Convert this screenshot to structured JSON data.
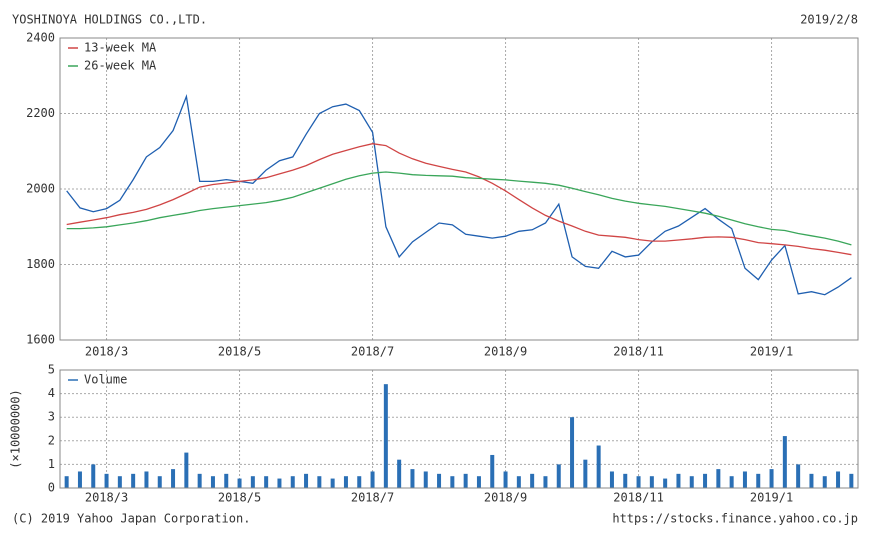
{
  "header": {
    "title": "YOSHINOYA HOLDINGS CO.,LTD.",
    "date": "2019/2/8"
  },
  "chart_data": [
    {
      "type": "line",
      "categories": [
        null,
        null,
        null,
        "2018/3",
        null,
        null,
        null,
        null,
        null,
        null,
        null,
        null,
        null,
        "2018/5",
        null,
        null,
        null,
        null,
        null,
        null,
        null,
        null,
        null,
        "2018/7",
        null,
        null,
        null,
        null,
        null,
        null,
        null,
        null,
        null,
        "2018/9",
        null,
        null,
        null,
        null,
        null,
        null,
        null,
        null,
        null,
        "2018/11",
        null,
        null,
        null,
        null,
        null,
        null,
        null,
        null,
        null,
        "2019/1",
        null,
        null,
        null,
        null,
        null,
        null
      ],
      "series": [
        {
          "color": "#1f5fb0",
          "values": [
            1995,
            1950,
            1940,
            1948,
            1970,
            2025,
            2085,
            2110,
            2155,
            2245,
            2020,
            2020,
            2025,
            2020,
            2015,
            2050,
            2075,
            2085,
            2145,
            2200,
            2218,
            2225,
            2208,
            2150,
            1900,
            1820,
            1860,
            1885,
            1910,
            1905,
            1880,
            1875,
            1870,
            1875,
            1888,
            1892,
            1910,
            1960,
            1820,
            1795,
            1790,
            1835,
            1820,
            1825,
            1860,
            1888,
            1902,
            1925,
            1948,
            1920,
            1895,
            1790,
            1760,
            1812,
            1850,
            1722,
            1728,
            1720,
            1740,
            1765
          ]
        },
        {
          "name": "13-week MA",
          "color": "#d04545",
          "values": [
            1906,
            1912,
            1918,
            1924,
            1932,
            1938,
            1946,
            1958,
            1972,
            1988,
            2005,
            2012,
            2016,
            2020,
            2024,
            2030,
            2040,
            2050,
            2062,
            2078,
            2092,
            2102,
            2112,
            2120,
            2115,
            2095,
            2080,
            2068,
            2060,
            2052,
            2045,
            2032,
            2015,
            1995,
            1972,
            1950,
            1930,
            1915,
            1902,
            1888,
            1878,
            1875,
            1872,
            1866,
            1862,
            1862,
            1865,
            1868,
            1872,
            1873,
            1872,
            1866,
            1858,
            1855,
            1852,
            1848,
            1842,
            1838,
            1832,
            1826
          ]
        },
        {
          "name": "26-week MA",
          "color": "#3aa65a",
          "values": [
            1895,
            1895,
            1897,
            1900,
            1905,
            1910,
            1916,
            1924,
            1930,
            1936,
            1943,
            1948,
            1952,
            1956,
            1960,
            1964,
            1970,
            1978,
            1990,
            2002,
            2014,
            2026,
            2035,
            2042,
            2045,
            2042,
            2038,
            2036,
            2035,
            2034,
            2030,
            2028,
            2026,
            2024,
            2021,
            2018,
            2015,
            2010,
            2002,
            1993,
            1985,
            1975,
            1968,
            1962,
            1958,
            1954,
            1948,
            1942,
            1936,
            1928,
            1918,
            1908,
            1900,
            1893,
            1890,
            1882,
            1876,
            1870,
            1862,
            1852
          ]
        }
      ],
      "ylim": [
        1600,
        2400
      ],
      "yticks": [
        1600,
        1800,
        2000,
        2200,
        2400
      ],
      "grid": true
    },
    {
      "type": "bar",
      "categories": [
        null,
        null,
        null,
        "2018/3",
        null,
        null,
        null,
        null,
        null,
        null,
        null,
        null,
        null,
        "2018/5",
        null,
        null,
        null,
        null,
        null,
        null,
        null,
        null,
        null,
        "2018/7",
        null,
        null,
        null,
        null,
        null,
        null,
        null,
        null,
        null,
        "2018/9",
        null,
        null,
        null,
        null,
        null,
        null,
        null,
        null,
        null,
        "2018/11",
        null,
        null,
        null,
        null,
        null,
        null,
        null,
        null,
        null,
        "2019/1",
        null,
        null,
        null,
        null,
        null,
        null
      ],
      "ylabel": "(×10000000)",
      "series": [
        {
          "name": "Volume",
          "color": "#2a6fb5",
          "values": [
            0.5,
            0.7,
            1.0,
            0.6,
            0.5,
            0.6,
            0.7,
            0.5,
            0.8,
            1.5,
            0.6,
            0.5,
            0.6,
            0.4,
            0.5,
            0.5,
            0.4,
            0.5,
            0.6,
            0.5,
            0.4,
            0.5,
            0.5,
            0.7,
            4.4,
            1.2,
            0.8,
            0.7,
            0.6,
            0.5,
            0.6,
            0.5,
            1.4,
            0.7,
            0.5,
            0.6,
            0.5,
            1.0,
            3.0,
            1.2,
            1.8,
            0.7,
            0.6,
            0.5,
            0.5,
            0.4,
            0.6,
            0.5,
            0.6,
            0.8,
            0.5,
            0.7,
            0.6,
            0.8,
            2.2,
            1.0,
            0.6,
            0.5,
            0.7,
            0.6
          ]
        }
      ],
      "ylim": [
        0,
        5
      ],
      "yticks": [
        0,
        1,
        2,
        3,
        4,
        5
      ],
      "grid": true
    }
  ],
  "footer": {
    "copyright": "(C) 2019 Yahoo Japan Corporation.",
    "url": "https://stocks.finance.yahoo.co.jp"
  }
}
